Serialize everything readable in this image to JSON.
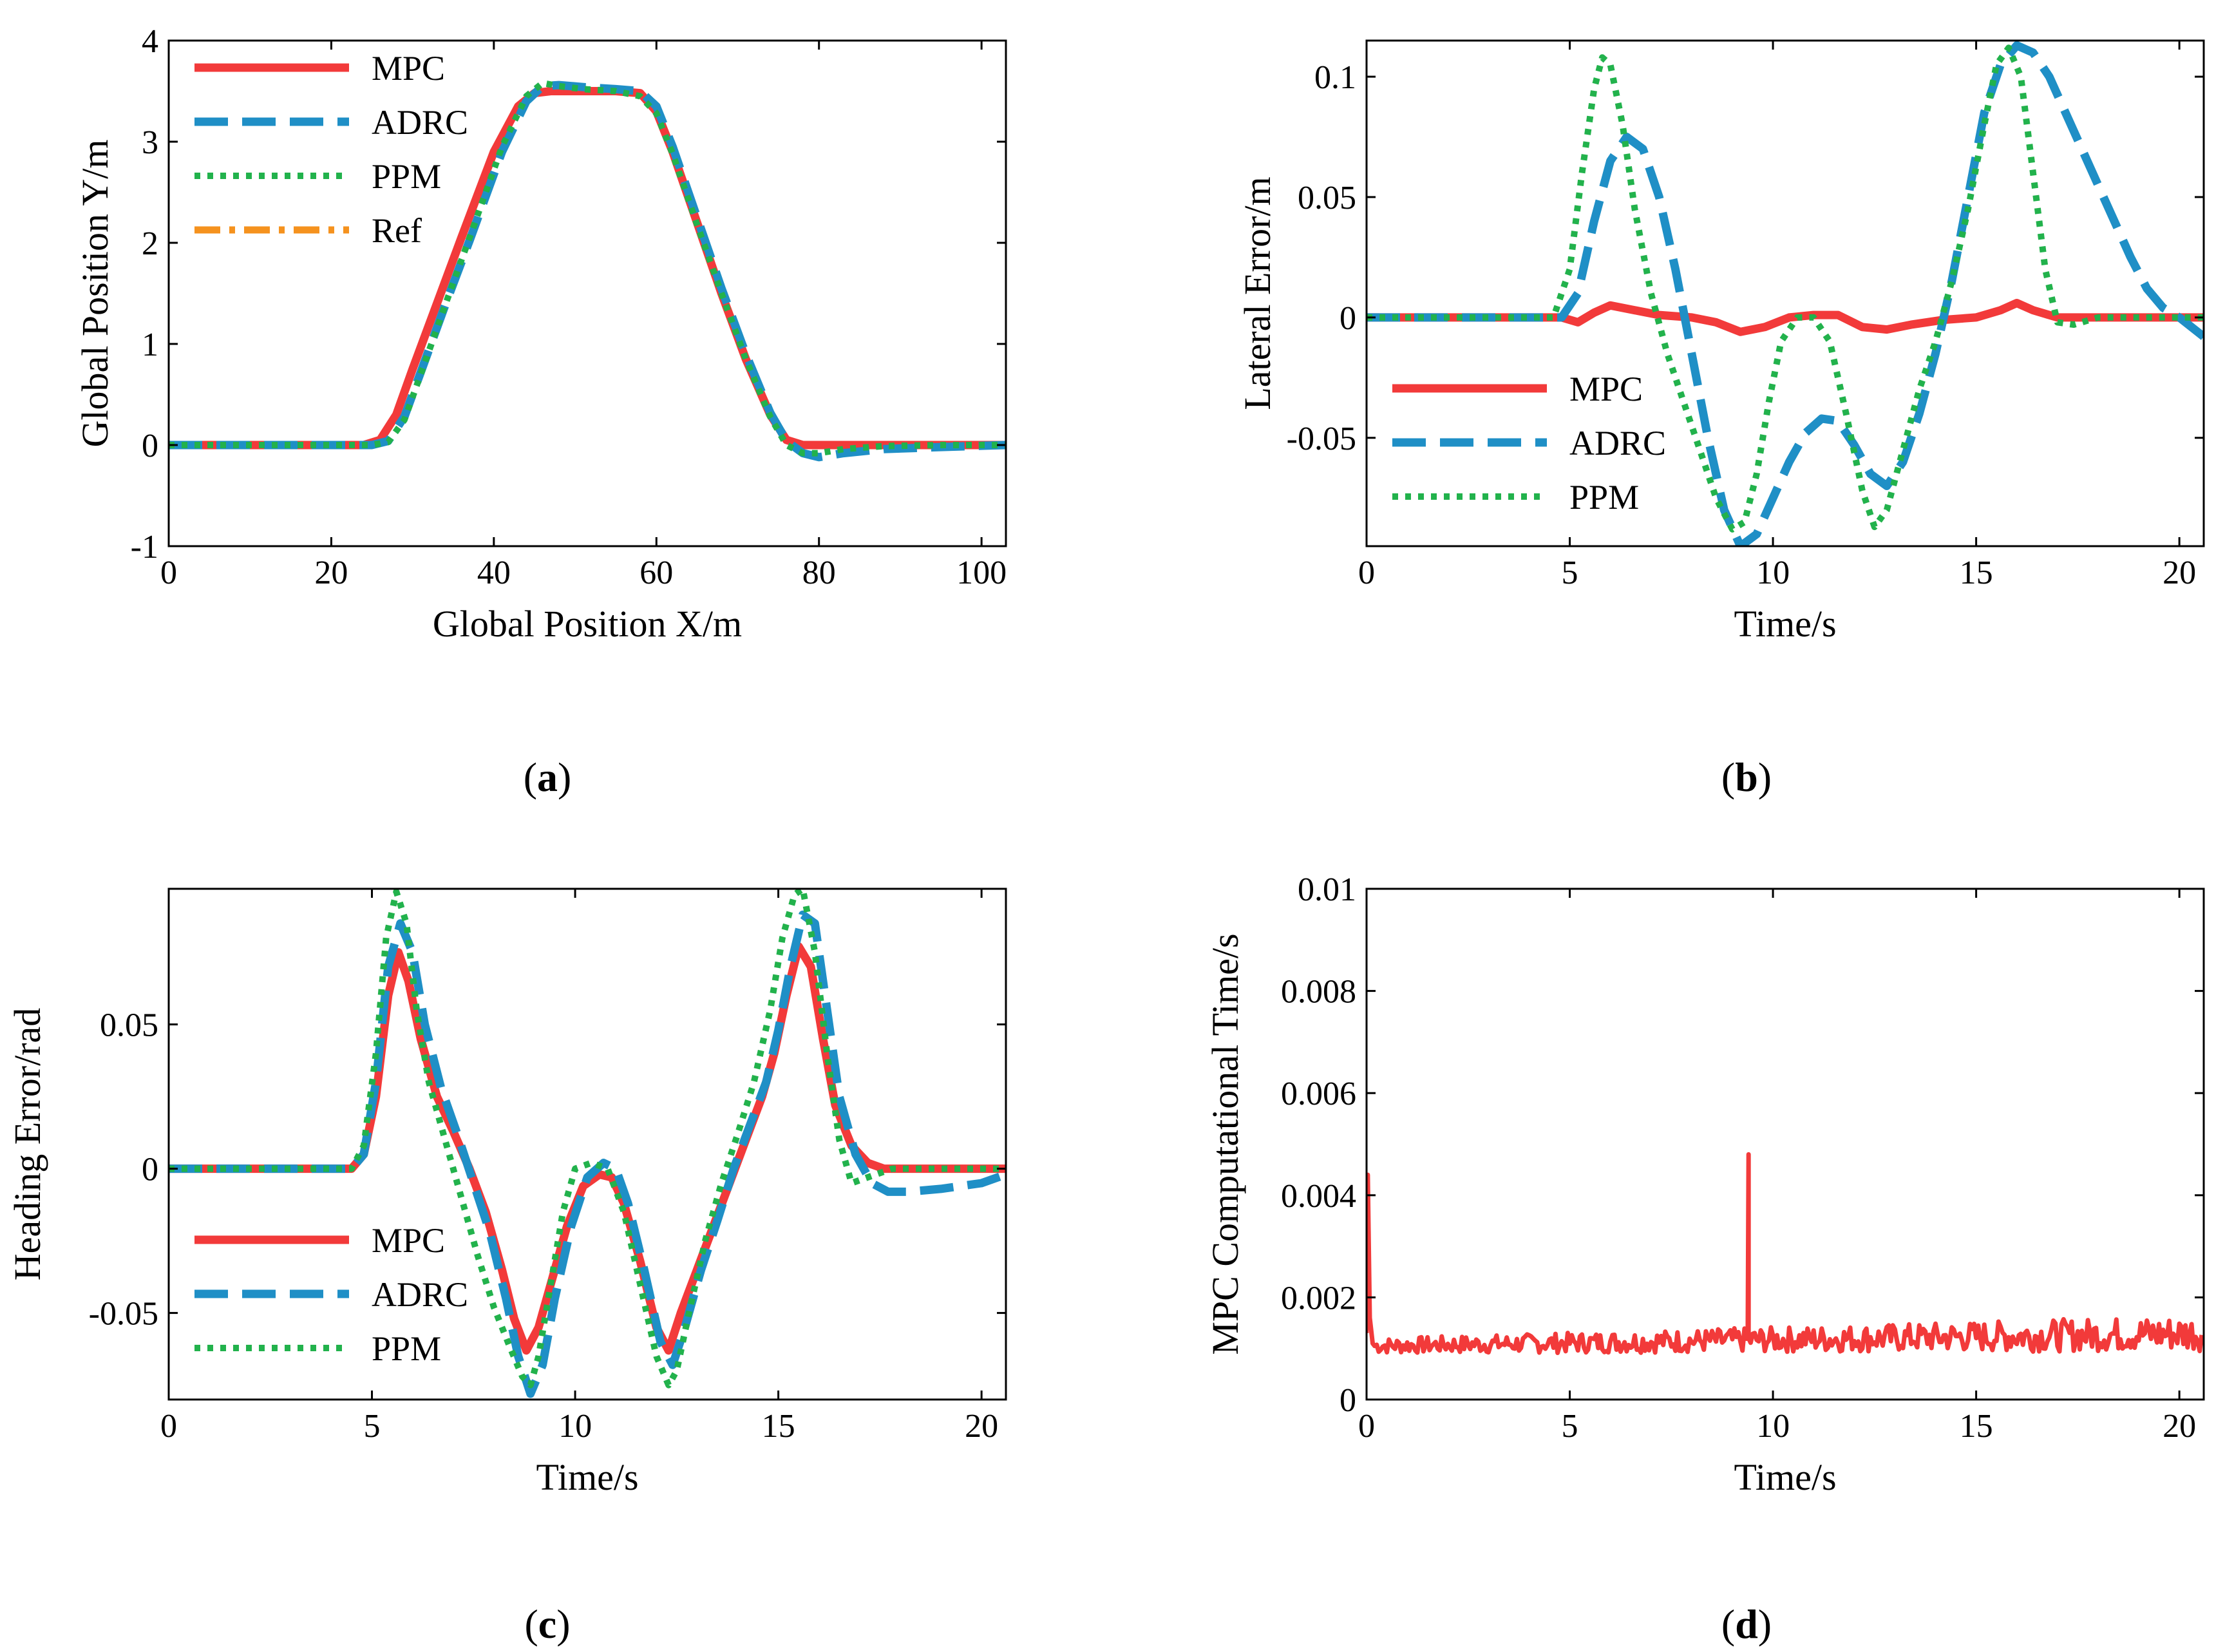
{
  "colors": {
    "MPC": "#f23a3a",
    "ADRC": "#1f8fc6",
    "PPM": "#22b24c",
    "Ref": "#f5921e"
  },
  "styles": {
    "MPC": "solid",
    "ADRC": "dash",
    "PPM": "dot",
    "Ref": "dashdot"
  },
  "chart_data": [
    {
      "id": "a",
      "caption": {
        "open": "(",
        "letter": "a",
        "close": ")"
      },
      "type": "line",
      "xlabel": "Global Position X/m",
      "ylabel": "Global Position Y/m",
      "xlim": [
        0,
        103
      ],
      "ylim": [
        -1,
        4
      ],
      "xticks": [
        0,
        20,
        40,
        60,
        80,
        100
      ],
      "yticks": [
        -1,
        0,
        1,
        2,
        3,
        4
      ],
      "xtick_labels": [
        "0",
        "20",
        "40",
        "60",
        "80",
        "100"
      ],
      "ytick_labels": [
        "-1",
        "0",
        "1",
        "2",
        "3",
        "4"
      ],
      "legend": {
        "position": "top-left",
        "entries": [
          "MPC",
          "ADRC",
          "PPM",
          "Ref"
        ]
      },
      "series": [
        {
          "name": "Ref",
          "x": [
            0,
            24,
            26,
            28,
            30,
            33,
            36,
            40,
            43,
            45,
            47,
            50,
            55,
            58,
            60,
            62,
            65,
            68,
            71,
            74,
            76,
            78,
            80,
            85,
            90,
            95,
            103
          ],
          "y": [
            0,
            0,
            0.05,
            0.3,
            0.75,
            1.4,
            2.05,
            2.9,
            3.35,
            3.48,
            3.5,
            3.5,
            3.5,
            3.48,
            3.3,
            2.9,
            2.2,
            1.5,
            0.85,
            0.3,
            0.05,
            0,
            0,
            0,
            0,
            0,
            0
          ]
        },
        {
          "name": "MPC",
          "x": [
            0,
            24,
            26,
            28,
            30,
            33,
            36,
            40,
            43,
            45,
            47,
            50,
            55,
            58,
            60,
            62,
            65,
            68,
            71,
            74,
            76,
            78,
            80,
            85,
            90,
            95,
            103
          ],
          "y": [
            0,
            0,
            0.05,
            0.3,
            0.75,
            1.4,
            2.05,
            2.9,
            3.35,
            3.48,
            3.5,
            3.5,
            3.5,
            3.48,
            3.3,
            2.9,
            2.2,
            1.5,
            0.85,
            0.3,
            0.05,
            0,
            0,
            0,
            0,
            0,
            0
          ]
        },
        {
          "name": "ADRC",
          "x": [
            0,
            25,
            27,
            29,
            31,
            34,
            37,
            41,
            44,
            46,
            48,
            51,
            55,
            58,
            60,
            62,
            65,
            68,
            71,
            74,
            76,
            78,
            80,
            83,
            88,
            95,
            103
          ],
          "y": [
            0,
            0,
            0.04,
            0.28,
            0.72,
            1.38,
            2.02,
            2.9,
            3.4,
            3.55,
            3.56,
            3.54,
            3.52,
            3.5,
            3.35,
            2.95,
            2.25,
            1.55,
            0.9,
            0.32,
            0.04,
            -0.08,
            -0.12,
            -0.08,
            -0.04,
            -0.02,
            0
          ]
        },
        {
          "name": "PPM",
          "x": [
            0,
            25,
            27,
            29,
            31,
            34,
            37,
            41,
            44,
            46,
            48,
            51,
            55,
            58,
            60,
            62,
            65,
            68,
            71,
            74,
            76,
            78,
            80,
            83,
            88,
            95,
            103
          ],
          "y": [
            0,
            0,
            0.03,
            0.25,
            0.7,
            1.38,
            2.05,
            2.95,
            3.45,
            3.58,
            3.55,
            3.52,
            3.5,
            3.45,
            3.28,
            2.88,
            2.18,
            1.5,
            0.85,
            0.28,
            0.0,
            -0.08,
            -0.08,
            -0.04,
            -0.01,
            0,
            0
          ]
        }
      ]
    },
    {
      "id": "b",
      "caption": {
        "open": "(",
        "letter": "b",
        "close": ")"
      },
      "type": "line",
      "xlabel": "Time/s",
      "ylabel": "Lateral Error/m",
      "xlim": [
        0,
        20.6
      ],
      "ylim": [
        -0.095,
        0.115
      ],
      "xticks": [
        0,
        5,
        10,
        15,
        20
      ],
      "yticks": [
        -0.05,
        0,
        0.05,
        0.1
      ],
      "xtick_labels": [
        "0",
        "5",
        "10",
        "15",
        "20"
      ],
      "ytick_labels": [
        "-0.05",
        "0",
        "0.05",
        "0.1"
      ],
      "legend": {
        "position": "bottom-left",
        "entries": [
          "MPC",
          "ADRC",
          "PPM"
        ]
      },
      "series": [
        {
          "name": "MPC",
          "x": [
            0,
            4.8,
            5.2,
            5.6,
            6.0,
            6.6,
            7.2,
            8.0,
            8.6,
            9.2,
            9.8,
            10.4,
            11.0,
            11.6,
            12.2,
            12.8,
            13.4,
            14.2,
            15.0,
            15.6,
            16.0,
            16.4,
            17.0,
            18.0,
            20.6
          ],
          "y": [
            0,
            0,
            -0.002,
            0.002,
            0.005,
            0.003,
            0.001,
            0.0,
            -0.002,
            -0.006,
            -0.004,
            0.0,
            0.001,
            0.001,
            -0.004,
            -0.005,
            -0.003,
            -0.001,
            0.0,
            0.003,
            0.006,
            0.003,
            0.0,
            0,
            0
          ]
        },
        {
          "name": "ADRC",
          "x": [
            0,
            4.8,
            5.2,
            5.6,
            6.0,
            6.4,
            6.8,
            7.2,
            7.6,
            8.0,
            8.4,
            8.8,
            9.2,
            9.6,
            10.0,
            10.4,
            10.8,
            11.2,
            11.6,
            12.0,
            12.4,
            12.8,
            13.2,
            13.6,
            14.0,
            14.4,
            14.8,
            15.2,
            15.6,
            16.0,
            16.4,
            16.8,
            17.2,
            17.6,
            18.0,
            18.4,
            18.8,
            19.2,
            19.6,
            20.0,
            20.6
          ],
          "y": [
            0,
            0,
            0.01,
            0.04,
            0.065,
            0.075,
            0.07,
            0.05,
            0.02,
            -0.015,
            -0.05,
            -0.08,
            -0.095,
            -0.09,
            -0.075,
            -0.06,
            -0.048,
            -0.042,
            -0.043,
            -0.053,
            -0.065,
            -0.07,
            -0.06,
            -0.04,
            -0.015,
            0.015,
            0.05,
            0.085,
            0.105,
            0.113,
            0.11,
            0.1,
            0.085,
            0.07,
            0.055,
            0.04,
            0.025,
            0.012,
            0.004,
            0.0,
            -0.008
          ]
        },
        {
          "name": "PPM",
          "x": [
            0,
            4.6,
            5.0,
            5.3,
            5.6,
            5.8,
            6.0,
            6.3,
            6.6,
            7.0,
            7.4,
            7.8,
            8.2,
            8.6,
            9.0,
            9.3,
            9.6,
            9.9,
            10.2,
            10.6,
            11.0,
            11.4,
            11.8,
            12.2,
            12.5,
            12.8,
            13.2,
            13.6,
            14.0,
            14.4,
            14.8,
            15.2,
            15.5,
            15.8,
            16.1,
            16.4,
            16.7,
            17.0,
            17.4,
            18.0,
            20.6
          ],
          "y": [
            0,
            0,
            0.02,
            0.06,
            0.095,
            0.108,
            0.105,
            0.08,
            0.045,
            0.01,
            -0.015,
            -0.035,
            -0.055,
            -0.075,
            -0.088,
            -0.085,
            -0.065,
            -0.035,
            -0.01,
            0.0,
            0.0,
            -0.01,
            -0.04,
            -0.072,
            -0.087,
            -0.08,
            -0.055,
            -0.03,
            -0.01,
            0.015,
            0.045,
            0.08,
            0.105,
            0.112,
            0.1,
            0.06,
            0.02,
            -0.002,
            -0.003,
            0,
            0
          ]
        }
      ]
    },
    {
      "id": "c",
      "caption": {
        "open": "(",
        "letter": "c",
        "close": ")"
      },
      "type": "line",
      "xlabel": "Time/s",
      "ylabel": "Heading Error/rad",
      "xlim": [
        0,
        20.6
      ],
      "ylim": [
        -0.08,
        0.097
      ],
      "xticks": [
        0,
        5,
        10,
        15,
        20
      ],
      "yticks": [
        -0.05,
        0,
        0.05
      ],
      "xtick_labels": [
        "0",
        "5",
        "10",
        "15",
        "20"
      ],
      "ytick_labels": [
        "-0.05",
        "0",
        "0.05"
      ],
      "legend": {
        "position": "bottom-left",
        "entries": [
          "MPC",
          "ADRC",
          "PPM"
        ]
      },
      "series": [
        {
          "name": "MPC",
          "x": [
            0,
            4.5,
            4.8,
            5.1,
            5.4,
            5.65,
            5.9,
            6.2,
            6.6,
            7.0,
            7.4,
            7.8,
            8.2,
            8.5,
            8.8,
            9.1,
            9.4,
            9.8,
            10.2,
            10.6,
            10.9,
            11.2,
            11.6,
            12.0,
            12.3,
            12.6,
            13.0,
            13.4,
            13.8,
            14.2,
            14.6,
            14.9,
            15.2,
            15.5,
            15.8,
            16.1,
            16.4,
            16.8,
            17.2,
            17.6,
            18.0,
            20.6
          ],
          "y": [
            0,
            0,
            0.005,
            0.025,
            0.06,
            0.075,
            0.065,
            0.045,
            0.025,
            0.013,
            0.0,
            -0.015,
            -0.035,
            -0.052,
            -0.063,
            -0.055,
            -0.04,
            -0.02,
            -0.006,
            -0.002,
            -0.003,
            -0.012,
            -0.032,
            -0.055,
            -0.063,
            -0.05,
            -0.035,
            -0.02,
            -0.005,
            0.01,
            0.025,
            0.04,
            0.06,
            0.077,
            0.07,
            0.045,
            0.022,
            0.008,
            0.002,
            0.0,
            0,
            0
          ]
        },
        {
          "name": "ADRC",
          "x": [
            0,
            4.5,
            4.8,
            5.1,
            5.4,
            5.7,
            6.0,
            6.3,
            6.7,
            7.1,
            7.5,
            7.9,
            8.3,
            8.6,
            8.9,
            9.2,
            9.5,
            9.9,
            10.3,
            10.7,
            11.0,
            11.3,
            11.7,
            12.1,
            12.4,
            12.7,
            13.1,
            13.5,
            13.9,
            14.3,
            14.7,
            15.0,
            15.3,
            15.6,
            15.9,
            16.2,
            16.5,
            16.9,
            17.3,
            17.7,
            18.2,
            19.0,
            20.0,
            20.6
          ],
          "y": [
            0,
            0,
            0.005,
            0.03,
            0.07,
            0.085,
            0.075,
            0.05,
            0.028,
            0.012,
            -0.005,
            -0.022,
            -0.045,
            -0.065,
            -0.078,
            -0.068,
            -0.045,
            -0.02,
            -0.003,
            0.002,
            0.0,
            -0.012,
            -0.035,
            -0.06,
            -0.068,
            -0.055,
            -0.035,
            -0.018,
            0.0,
            0.015,
            0.03,
            0.048,
            0.07,
            0.088,
            0.085,
            0.055,
            0.025,
            0.005,
            -0.005,
            -0.008,
            -0.008,
            -0.007,
            -0.005,
            -0.002
          ]
        },
        {
          "name": "PPM",
          "x": [
            0,
            4.5,
            4.8,
            5.1,
            5.35,
            5.6,
            5.85,
            6.1,
            6.4,
            6.8,
            7.2,
            7.6,
            8.0,
            8.4,
            8.7,
            8.9,
            9.1,
            9.4,
            9.7,
            10.0,
            10.4,
            10.8,
            11.2,
            11.6,
            12.0,
            12.3,
            12.5,
            12.8,
            13.2,
            13.6,
            14.0,
            14.4,
            14.8,
            15.1,
            15.4,
            15.6,
            15.9,
            16.2,
            16.5,
            16.8,
            17.2,
            17.8,
            20.6
          ],
          "y": [
            0,
            0,
            0.008,
            0.04,
            0.08,
            0.096,
            0.085,
            0.055,
            0.03,
            0.01,
            -0.01,
            -0.03,
            -0.048,
            -0.062,
            -0.072,
            -0.075,
            -0.065,
            -0.04,
            -0.015,
            0.0,
            0.002,
            0.0,
            -0.015,
            -0.04,
            -0.065,
            -0.075,
            -0.07,
            -0.05,
            -0.025,
            -0.005,
            0.012,
            0.03,
            0.055,
            0.08,
            0.095,
            0.097,
            0.075,
            0.04,
            0.01,
            -0.005,
            -0.003,
            0,
            0
          ]
        }
      ]
    },
    {
      "id": "d",
      "caption": {
        "open": "(",
        "letter": "d",
        "close": ")"
      },
      "type": "line",
      "xlabel": "Time/s",
      "ylabel": "MPC Computational Time/s",
      "xlim": [
        0,
        20.6
      ],
      "ylim": [
        0,
        0.01
      ],
      "xticks": [
        0,
        5,
        10,
        15,
        20
      ],
      "yticks": [
        0,
        0.002,
        0.004,
        0.006,
        0.008,
        0.01
      ],
      "xtick_labels": [
        "0",
        "5",
        "10",
        "15",
        "20"
      ],
      "ytick_labels": [
        "0",
        "0.002",
        "0.004",
        "0.006",
        "0.008",
        "0.01"
      ],
      "legend": {
        "position": "none",
        "entries": []
      },
      "noise": {
        "name": "MPC",
        "start_peak": 0.0044,
        "spike_x": 9.4,
        "spike_y": 0.0048,
        "base_start": 0.00105,
        "base_end": 0.0013,
        "amp_start": 0.00015,
        "amp_end": 0.00035,
        "step": 0.05
      }
    }
  ]
}
